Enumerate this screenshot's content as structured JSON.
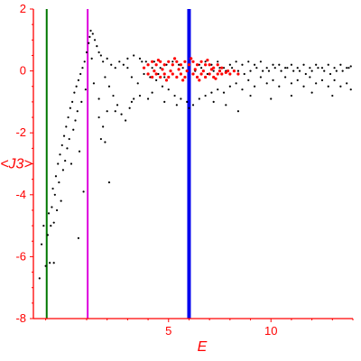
{
  "chart_data": {
    "type": "scatter",
    "xlabel": "E",
    "ylabel": "<J3>",
    "xlim": [
      -1.6,
      14
    ],
    "ylim": [
      -8,
      2
    ],
    "x_ticks": [
      {
        "value": 5,
        "label": "5"
      },
      {
        "value": 10,
        "label": "10"
      }
    ],
    "y_ticks": [
      {
        "value": 2,
        "label": "2"
      },
      {
        "value": 0,
        "label": "0"
      },
      {
        "value": -2,
        "label": "-2"
      },
      {
        "value": -4,
        "label": "-4"
      },
      {
        "value": -6,
        "label": "-6"
      },
      {
        "value": -8,
        "label": "-8"
      }
    ],
    "grid": false,
    "colors": {
      "axis": "#ff0000",
      "black_points": "#000000",
      "red_points": "#ff0000"
    },
    "vertical_lines": [
      {
        "x": -0.95,
        "color": "#007700",
        "width": 2
      },
      {
        "x": 1.05,
        "color": "#dd00dd",
        "width": 2
      },
      {
        "x": 6.0,
        "color": "#0000ee",
        "width": 4
      }
    ],
    "series": [
      {
        "color": "#000000",
        "points": [
          [
            -1.3,
            -6.7
          ],
          [
            -1.2,
            -5.6
          ],
          [
            -1.1,
            -5.0
          ],
          [
            -1.0,
            -6.3
          ],
          [
            -0.9,
            -5.3
          ],
          [
            -0.85,
            -4.6
          ],
          [
            -0.8,
            -6.2
          ],
          [
            -0.75,
            -5.0
          ],
          [
            -0.7,
            -4.4
          ],
          [
            -0.65,
            -3.8
          ],
          [
            -0.6,
            -4.9
          ],
          [
            -0.55,
            -4.0
          ],
          [
            -0.5,
            -3.4
          ],
          [
            -0.45,
            -4.5
          ],
          [
            -0.4,
            -3.0
          ],
          [
            -0.35,
            -3.6
          ],
          [
            -0.3,
            -2.7
          ],
          [
            -0.25,
            -4.2
          ],
          [
            -0.2,
            -2.4
          ],
          [
            -0.15,
            -3.2
          ],
          [
            -0.1,
            -2.1
          ],
          [
            -0.05,
            -2.9
          ],
          [
            0.0,
            -1.8
          ],
          [
            0.05,
            -2.5
          ],
          [
            0.1,
            -1.5
          ],
          [
            0.15,
            -2.2
          ],
          [
            0.2,
            -1.2
          ],
          [
            0.25,
            -3.0
          ],
          [
            0.3,
            -1.0
          ],
          [
            0.35,
            -1.9
          ],
          [
            0.4,
            -0.7
          ],
          [
            0.45,
            -1.6
          ],
          [
            0.5,
            -0.5
          ],
          [
            0.55,
            -1.3
          ],
          [
            0.6,
            -0.3
          ],
          [
            0.65,
            -2.6
          ],
          [
            0.7,
            -0.1
          ],
          [
            0.75,
            -1.0
          ],
          [
            0.8,
            0.1
          ],
          [
            0.85,
            -3.9
          ],
          [
            0.9,
            0.3
          ],
          [
            0.95,
            -0.6
          ],
          [
            1.0,
            0.6
          ],
          [
            1.1,
            0.9
          ],
          [
            1.15,
            1.1
          ],
          [
            1.2,
            1.3
          ],
          [
            1.25,
            0.4
          ],
          [
            1.3,
            1.2
          ],
          [
            1.35,
            -0.4
          ],
          [
            1.4,
            1.0
          ],
          [
            1.5,
            0.8
          ],
          [
            1.6,
            0.6
          ],
          [
            1.7,
            0.5
          ],
          [
            1.8,
            0.3
          ],
          [
            1.9,
            -0.2
          ],
          [
            2.0,
            0.4
          ],
          [
            2.1,
            -0.5
          ],
          [
            2.2,
            0.2
          ],
          [
            2.3,
            -0.8
          ],
          [
            2.4,
            0.1
          ],
          [
            2.5,
            -1.1
          ],
          [
            2.6,
            0.3
          ],
          [
            2.7,
            -1.4
          ],
          [
            2.8,
            0.2
          ],
          [
            2.9,
            -1.6
          ],
          [
            3.0,
            0.1
          ],
          [
            3.1,
            -1.2
          ],
          [
            3.2,
            -0.2
          ],
          [
            3.3,
            -0.9
          ],
          [
            3.5,
            -0.4
          ],
          [
            1.6,
            -1.5
          ],
          [
            1.7,
            -2.2
          ],
          [
            1.8,
            -1.8
          ],
          [
            2.1,
            -3.6
          ],
          [
            1.9,
            -2.3
          ],
          [
            0.6,
            -5.4
          ],
          [
            -0.6,
            -6.2
          ],
          [
            1.6,
            -0.9
          ],
          [
            2.0,
            -1.3
          ],
          [
            2.4,
            -1.3
          ],
          [
            3.7,
            0.3
          ],
          [
            4.0,
            0.2
          ],
          [
            4.3,
            0.3
          ],
          [
            4.6,
            0.1
          ],
          [
            4.9,
            0.2
          ],
          [
            5.2,
            0.3
          ],
          [
            5.5,
            0.2
          ],
          [
            5.8,
            0.3
          ],
          [
            6.2,
            0.3
          ],
          [
            6.5,
            0.2
          ],
          [
            6.8,
            0.3
          ],
          [
            7.1,
            0.2
          ],
          [
            7.4,
            0.3
          ],
          [
            7.7,
            0.1
          ],
          [
            8.0,
            0.2
          ],
          [
            8.3,
            0.3
          ],
          [
            8.6,
            0.2
          ],
          [
            8.9,
            0.3
          ],
          [
            9.2,
            0.2
          ],
          [
            9.5,
            0.3
          ],
          [
            9.8,
            0.1
          ],
          [
            10.1,
            0.2
          ],
          [
            10.4,
            0.2
          ],
          [
            10.7,
            0.1
          ],
          [
            11.0,
            0.2
          ],
          [
            11.3,
            0.1
          ],
          [
            11.6,
            0.2
          ],
          [
            11.9,
            0.1
          ],
          [
            12.2,
            0.2
          ],
          [
            12.5,
            0.1
          ],
          [
            12.8,
            0.2
          ],
          [
            13.1,
            0.1
          ],
          [
            13.4,
            0.2
          ],
          [
            13.7,
            0.1
          ],
          [
            13.9,
            0.15
          ],
          [
            3.8,
            -0.1
          ],
          [
            4.1,
            -0.2
          ],
          [
            4.4,
            -0.3
          ],
          [
            4.7,
            -0.5
          ],
          [
            5.0,
            -0.6
          ],
          [
            5.3,
            -0.8
          ],
          [
            5.6,
            -0.9
          ],
          [
            5.9,
            -1.0
          ],
          [
            6.2,
            -1.1
          ],
          [
            6.5,
            -0.9
          ],
          [
            6.8,
            -0.8
          ],
          [
            7.1,
            -0.7
          ],
          [
            7.4,
            -0.6
          ],
          [
            7.7,
            -0.7
          ],
          [
            8.0,
            -0.5
          ],
          [
            8.3,
            -0.4
          ],
          [
            8.6,
            -0.6
          ],
          [
            8.9,
            -0.3
          ],
          [
            9.2,
            -0.5
          ],
          [
            9.5,
            -0.2
          ],
          [
            9.8,
            -0.4
          ],
          [
            10.1,
            -0.3
          ],
          [
            10.4,
            -0.5
          ],
          [
            10.7,
            -0.2
          ],
          [
            11.0,
            -0.4
          ],
          [
            11.3,
            -0.3
          ],
          [
            11.6,
            -0.5
          ],
          [
            11.9,
            -0.2
          ],
          [
            12.2,
            -0.4
          ],
          [
            12.5,
            -0.3
          ],
          [
            12.8,
            -0.5
          ],
          [
            13.1,
            -0.3
          ],
          [
            13.4,
            -0.5
          ],
          [
            13.7,
            -0.4
          ],
          [
            13.9,
            -0.6
          ],
          [
            4.2,
            -0.7
          ],
          [
            4.8,
            -1.0
          ],
          [
            5.4,
            -1.1
          ],
          [
            6.0,
            -1.2
          ],
          [
            7.2,
            -1.0
          ],
          [
            7.8,
            -1.1
          ],
          [
            8.4,
            -1.3
          ],
          [
            9.0,
            -0.8
          ],
          [
            10.0,
            -0.9
          ],
          [
            11.0,
            -0.8
          ],
          [
            12.0,
            -0.7
          ],
          [
            13.0,
            -0.8
          ],
          [
            3.2,
            -1.0
          ],
          [
            3.6,
            -0.8
          ],
          [
            4.0,
            -0.9
          ],
          [
            3.0,
            0.4
          ],
          [
            3.3,
            0.5
          ],
          [
            3.6,
            0.4
          ],
          [
            3.9,
            0.3
          ],
          [
            4.2,
            0.1
          ],
          [
            4.5,
            -0.1
          ],
          [
            4.8,
            -0.2
          ],
          [
            5.1,
            0.0
          ],
          [
            5.4,
            -0.2
          ],
          [
            5.7,
            0.1
          ],
          [
            6.3,
            0.0
          ],
          [
            6.6,
            0.1
          ],
          [
            6.9,
            -0.1
          ],
          [
            7.2,
            0.0
          ],
          [
            7.5,
            0.1
          ],
          [
            7.8,
            0.0
          ],
          [
            8.1,
            0.1
          ],
          [
            8.4,
            0.0
          ],
          [
            8.7,
            -0.1
          ],
          [
            9.0,
            0.0
          ],
          [
            9.3,
            0.1
          ],
          [
            9.6,
            0.0
          ],
          [
            9.9,
            0.0
          ],
          [
            10.2,
            0.1
          ],
          [
            10.5,
            0.0
          ],
          [
            10.8,
            0.1
          ],
          [
            11.1,
            0.0
          ],
          [
            11.4,
            0.0
          ],
          [
            11.7,
            -0.1
          ],
          [
            12.0,
            0.0
          ],
          [
            12.3,
            0.1
          ],
          [
            12.6,
            0.0
          ],
          [
            12.9,
            -0.1
          ],
          [
            13.2,
            0.0
          ],
          [
            13.5,
            0.0
          ],
          [
            13.8,
            0.1
          ]
        ]
      },
      {
        "color": "#ff0000",
        "points": [
          [
            3.8,
            0.1
          ],
          [
            4.0,
            0.2
          ],
          [
            4.2,
            0.3
          ],
          [
            4.4,
            0.2
          ],
          [
            4.6,
            0.3
          ],
          [
            4.8,
            0.2
          ],
          [
            5.0,
            0.3
          ],
          [
            5.2,
            0.2
          ],
          [
            5.4,
            0.3
          ],
          [
            5.6,
            0.2
          ],
          [
            5.8,
            0.3
          ],
          [
            6.0,
            0.2
          ],
          [
            6.2,
            0.3
          ],
          [
            6.4,
            0.2
          ],
          [
            6.6,
            0.3
          ],
          [
            6.8,
            0.2
          ],
          [
            7.0,
            0.2
          ],
          [
            7.2,
            0.1
          ],
          [
            7.4,
            0.2
          ],
          [
            7.6,
            0.1
          ],
          [
            4.0,
            -0.1
          ],
          [
            4.2,
            -0.2
          ],
          [
            4.4,
            -0.1
          ],
          [
            4.6,
            -0.2
          ],
          [
            4.8,
            -0.1
          ],
          [
            5.0,
            -0.2
          ],
          [
            5.2,
            -0.1
          ],
          [
            5.4,
            -0.2
          ],
          [
            5.6,
            -0.1
          ],
          [
            5.8,
            -0.2
          ],
          [
            6.2,
            -0.1
          ],
          [
            6.4,
            -0.2
          ],
          [
            6.6,
            -0.1
          ],
          [
            6.8,
            -0.2
          ],
          [
            7.0,
            -0.1
          ],
          [
            7.2,
            -0.2
          ],
          [
            7.4,
            -0.1
          ],
          [
            7.6,
            -0.1
          ],
          [
            7.8,
            -0.05
          ],
          [
            8.0,
            -0.1
          ],
          [
            4.3,
            0.0
          ],
          [
            4.7,
            0.05
          ],
          [
            5.1,
            0.0
          ],
          [
            5.5,
            0.05
          ],
          [
            5.9,
            0.0
          ],
          [
            6.3,
            0.05
          ],
          [
            6.7,
            0.0
          ],
          [
            7.1,
            0.05
          ],
          [
            7.5,
            0.0
          ],
          [
            7.9,
            0.0
          ],
          [
            4.5,
            0.35
          ],
          [
            5.3,
            0.4
          ],
          [
            6.1,
            0.4
          ],
          [
            6.9,
            0.35
          ],
          [
            4.9,
            -0.3
          ],
          [
            5.7,
            -0.3
          ],
          [
            6.5,
            -0.3
          ],
          [
            7.3,
            -0.25
          ],
          [
            8.2,
            0.0
          ],
          [
            8.4,
            -0.1
          ]
        ]
      }
    ]
  }
}
